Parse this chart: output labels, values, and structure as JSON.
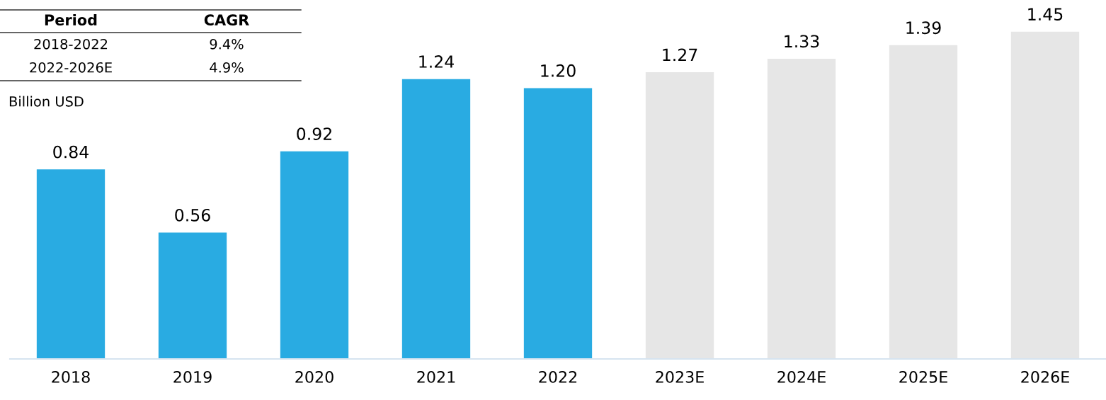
{
  "chart_data": {
    "type": "bar",
    "ylabel": "Billion USD",
    "categories": [
      "2018",
      "2019",
      "2020",
      "2021",
      "2022",
      "2023E",
      "2024E",
      "2025E",
      "2026E"
    ],
    "values": [
      0.84,
      0.56,
      0.92,
      1.24,
      1.2,
      1.27,
      1.33,
      1.39,
      1.45
    ],
    "value_labels": [
      "0.84",
      "0.56",
      "0.92",
      "1.24",
      "1.20",
      "1.27",
      "1.33",
      "1.39",
      "1.45"
    ],
    "colors": [
      "#29abe2",
      "#29abe2",
      "#29abe2",
      "#29abe2",
      "#29abe2",
      "#e6e6e6",
      "#e6e6e6",
      "#e6e6e6",
      "#e6e6e6"
    ],
    "tick_labels": "x",
    "grid": false,
    "annotations": [
      "Period",
      "CAGR",
      "2018-2022",
      "9.4%",
      "2022-2026E",
      "4.9%"
    ]
  }
}
